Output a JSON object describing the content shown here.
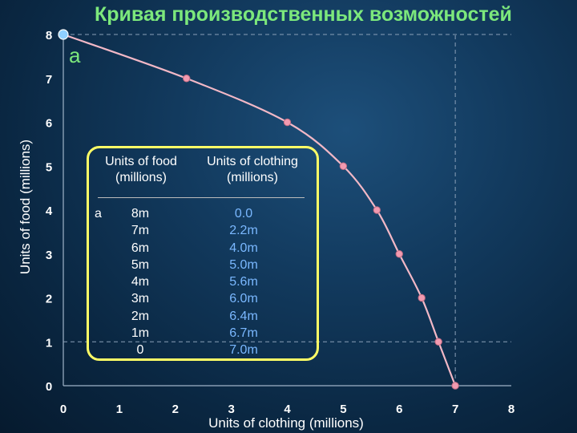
{
  "header": {
    "title": "Кривая производственных возможностей"
  },
  "chart_data": {
    "type": "line",
    "title": "Кривая производственных возможностей",
    "xlabel": "Units of clothing (millions)",
    "ylabel": "Units of food (millions)",
    "xlim": [
      0,
      8
    ],
    "ylim": [
      0,
      8
    ],
    "xticks": [
      "0",
      "1",
      "2",
      "3",
      "4",
      "5",
      "6",
      "7",
      "8"
    ],
    "yticks": [
      "0",
      "1",
      "2",
      "3",
      "4",
      "5",
      "6",
      "7",
      "8"
    ],
    "grid": false,
    "series": [
      {
        "x": [
          0.0,
          2.2,
          4.0,
          5.0,
          5.6,
          6.0,
          6.4,
          6.7,
          7.0
        ],
        "y": [
          8,
          7,
          6,
          5,
          4,
          3,
          2,
          1,
          0
        ]
      }
    ],
    "reference_lines": {
      "x": 7,
      "y": 1
    },
    "annotations": [
      {
        "text": "a",
        "x": 0,
        "y": 8
      }
    ],
    "colors": {
      "curve": "#f2b8c6",
      "marker": "#f29ab0",
      "point_a": "#8fd0ff"
    }
  },
  "table": {
    "headers": {
      "food_line1": "Units of food",
      "food_line2": "(millions)",
      "clothing_line1": "Units of clothing",
      "clothing_line2": "(millions)"
    },
    "row_label": "a",
    "food": [
      "8m",
      "7m",
      "6m",
      "5m",
      "4m",
      "3m",
      "2m",
      "1m",
      "0"
    ],
    "clothing": [
      "0.0",
      "2.2m",
      "4.0m",
      "5.0m",
      "5.6m",
      "6.0m",
      "6.4m",
      "6.7m",
      "7.0m"
    ]
  }
}
